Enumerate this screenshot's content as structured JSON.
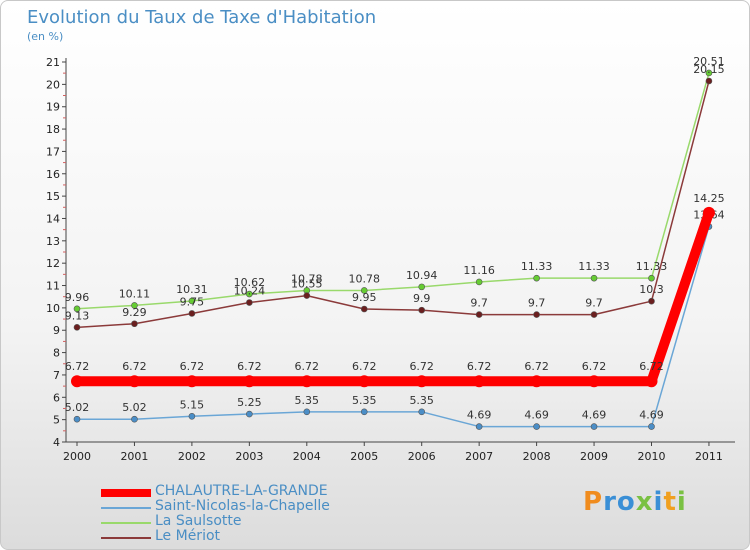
{
  "chart_data": {
    "type": "line",
    "title": "Evolution du Taux de Taxe d'Habitation",
    "subtitle": "(en %)",
    "x": [
      "2000",
      "2001",
      "2002",
      "2003",
      "2004",
      "2005",
      "2006",
      "2007",
      "2008",
      "2009",
      "2010",
      "2011"
    ],
    "ylim": [
      4,
      21
    ],
    "yticks": [
      "4",
      "5",
      "6",
      "7",
      "8",
      "9",
      "10",
      "11",
      "12",
      "13",
      "14",
      "15",
      "16",
      "17",
      "18",
      "19",
      "20",
      "21"
    ],
    "grid": false,
    "legend_position": "bottom-left",
    "series": [
      {
        "name": "La Saulsotte",
        "color": "#99d96b",
        "marker": "#66cc33",
        "values": [
          9.96,
          10.11,
          10.31,
          10.62,
          10.78,
          10.78,
          10.94,
          11.16,
          11.33,
          11.33,
          11.33,
          20.51
        ],
        "labels": [
          "9.96",
          "10.11",
          "10.31",
          "10.62",
          "10.78",
          "10.78",
          "10.94",
          "11.16",
          "11.33",
          "11.33",
          "11.33",
          "20.51"
        ]
      },
      {
        "name": "Le Mériot",
        "color": "#8b3a3a",
        "marker": "#6b1f1f",
        "values": [
          9.13,
          9.29,
          9.75,
          10.24,
          10.55,
          9.95,
          9.9,
          9.7,
          9.7,
          9.7,
          10.3,
          20.15
        ],
        "labels": [
          "9.13",
          "9.29",
          "9.75",
          "10.24",
          "10.55",
          "9.95",
          "9.9",
          "9.7",
          "9.7",
          "9.7",
          "10.3",
          "20.15"
        ]
      },
      {
        "name": "Saint-Nicolas-la-Chapelle",
        "color": "#6aa6d6",
        "marker": "#4b8ec7",
        "values": [
          5.02,
          5.02,
          5.15,
          5.25,
          5.35,
          5.35,
          5.35,
          4.69,
          4.69,
          4.69,
          4.69,
          13.64
        ],
        "labels": [
          "5.02",
          "5.02",
          "5.15",
          "5.25",
          "5.35",
          "5.35",
          "5.35",
          "4.69",
          "4.69",
          "4.69",
          "4.69",
          "13.64"
        ]
      },
      {
        "name": "CHALAUTRE-LA-GRANDE",
        "color": "#ff0000",
        "marker": "#ff0000",
        "values": [
          6.72,
          6.72,
          6.72,
          6.72,
          6.72,
          6.72,
          6.72,
          6.72,
          6.72,
          6.72,
          6.72,
          14.25
        ],
        "labels": [
          "6.72",
          "6.72",
          "6.72",
          "6.72",
          "6.72",
          "6.72",
          "6.72",
          "6.72",
          "6.72",
          "6.72",
          "6.72",
          "14.25"
        ]
      }
    ]
  },
  "legend": {
    "items": [
      {
        "label": "CHALAUTRE-LA-GRANDE",
        "color": "#ff0000"
      },
      {
        "label": "Saint-Nicolas-la-Chapelle",
        "color": "#6aa6d6"
      },
      {
        "label": "La Saulsotte",
        "color": "#99d96b"
      },
      {
        "label": "Le Mériot",
        "color": "#8b3a3a"
      }
    ]
  },
  "logo": {
    "text": "Proxiti",
    "colors": [
      "#f08c1e",
      "#3a8fd6",
      "#3a8fd6",
      "#7ac143",
      "#3a8fd6",
      "#f0a020",
      "#7ac143"
    ]
  }
}
